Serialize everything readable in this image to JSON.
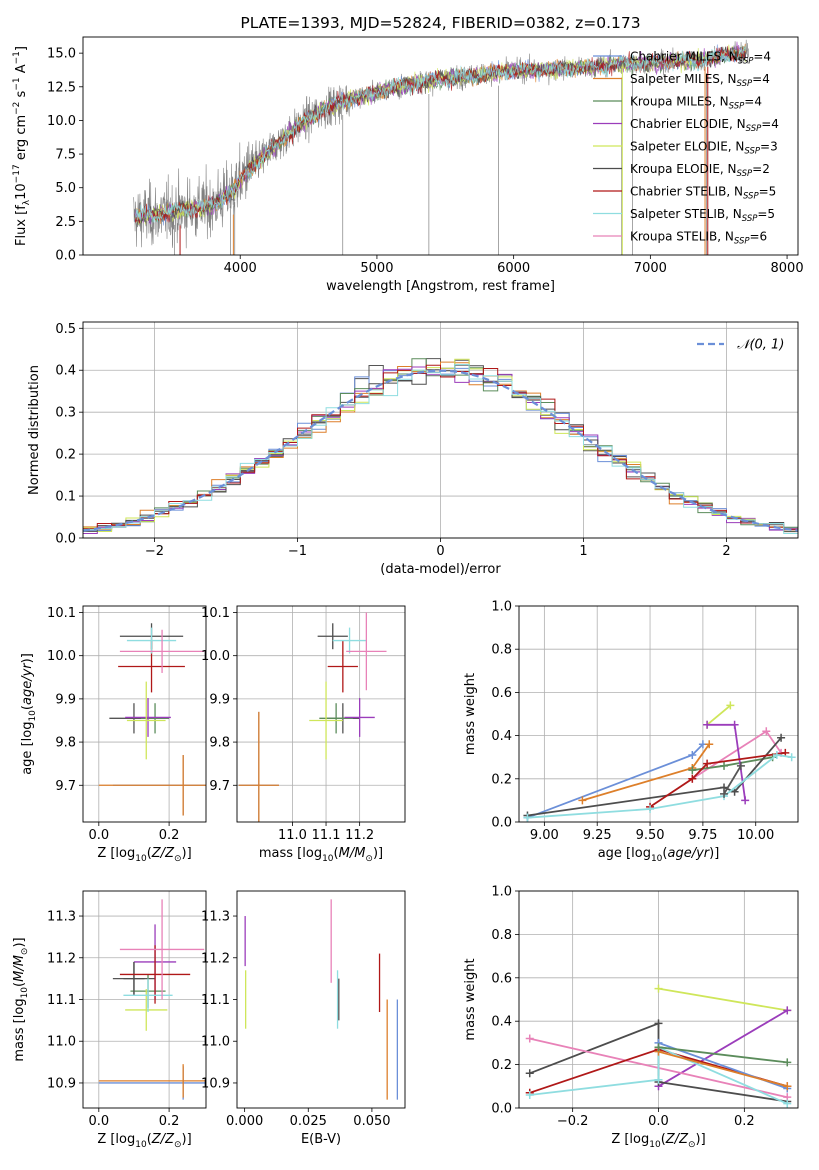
{
  "chart_data": [
    {
      "id": "spectrum",
      "type": "line",
      "title": "PLATE=1393, MJD=52824, FIBERID=0382, z=0.173",
      "xlabel": "wavelength [Angstrom, rest frame]",
      "ylabel": "Flux [f_λ 10^-17 erg cm^-2 s^-1 A^-1]",
      "xlim": [
        2850,
        8080
      ],
      "ylim": [
        0,
        16.2
      ],
      "xticks": [
        4000,
        5000,
        6000,
        7000,
        8000
      ],
      "yticks": [
        0.0,
        2.5,
        5.0,
        7.5,
        10.0,
        12.5,
        15.0
      ],
      "grid": false,
      "legend_position": "top-right",
      "legend": [
        "Chabrier MILES, N_SSP=4",
        "Salpeter MILES, N_SSP=4",
        "Kroupa MILES, N_SSP=4",
        "Chabrier ELODIE, N_SSP=4",
        "Salpeter ELODIE, N_SSP=3",
        "Kroupa ELODIE, N_SSP=2",
        "Chabrier STELIB, N_SSP=5",
        "Salpeter STELIB, N_SSP=5",
        "Kroupa STELIB, N_SSP=6"
      ],
      "continuum": [
        [
          3230,
          2.8
        ],
        [
          3400,
          3.0
        ],
        [
          3600,
          3.4
        ],
        [
          3800,
          3.7
        ],
        [
          3950,
          4.8
        ],
        [
          4050,
          6.2
        ],
        [
          4200,
          7.6
        ],
        [
          4400,
          9.4
        ],
        [
          4600,
          10.8
        ],
        [
          4800,
          11.6
        ],
        [
          5000,
          12.1
        ],
        [
          5200,
          12.6
        ],
        [
          5400,
          13.0
        ],
        [
          5600,
          13.2
        ],
        [
          5800,
          13.5
        ],
        [
          6000,
          13.7
        ],
        [
          6300,
          13.8
        ],
        [
          6600,
          14.0
        ],
        [
          6800,
          14.2
        ],
        [
          7000,
          14.3
        ],
        [
          7400,
          14.5
        ],
        [
          7600,
          15.0
        ]
      ],
      "data_range": [
        3220,
        7720
      ]
    },
    {
      "id": "residuals",
      "type": "line",
      "xlabel": "(data-model)/error",
      "ylabel": "Normed distribution",
      "xlim": [
        -2.5,
        2.5
      ],
      "ylim": [
        0,
        0.515
      ],
      "xticks": [
        -2,
        -1,
        0,
        1,
        2
      ],
      "yticks": [
        0.0,
        0.1,
        0.2,
        0.3,
        0.4,
        0.5
      ],
      "grid": true,
      "legend_position": "top-right",
      "legend": [
        "N(0,1)"
      ],
      "bin_width": 0.1
    },
    {
      "id": "age_vs_Z",
      "type": "scatter",
      "xlabel": "Z [log10(Z/Z⊙)]",
      "ylabel": "age  [log10(age/yr)]",
      "xlim": [
        -0.045,
        0.305
      ],
      "ylim": [
        9.615,
        10.115
      ],
      "xticks": [
        0.0,
        0.2
      ],
      "yticks": [
        9.7,
        9.8,
        9.9,
        10.0,
        10.1
      ],
      "grid": true,
      "points": [
        {
          "series": 0,
          "x": 0.1,
          "y": 9.855,
          "xerr": 0.07,
          "yerr": 0.035
        },
        {
          "series": 1,
          "x": 0.24,
          "y": 9.7,
          "xerr": 0.2,
          "yerr": 0.07
        },
        {
          "series": 2,
          "x": 0.24,
          "y": 9.7,
          "xerr": 0.24,
          "yerr": 0.07
        },
        {
          "series": 3,
          "x": 0.16,
          "y": 9.855,
          "xerr": 0.04,
          "yerr": 0.035
        },
        {
          "series": 4,
          "x": 0.14,
          "y": 9.857,
          "xerr": 0.065,
          "yerr": 0.045
        },
        {
          "series": 5,
          "x": 0.135,
          "y": 9.85,
          "xerr": 0.055,
          "yerr": 0.09
        },
        {
          "series": 6,
          "x": 0.15,
          "y": 10.045,
          "xerr": 0.09,
          "yerr": 0.03
        },
        {
          "series": 7,
          "x": 0.15,
          "y": 9.975,
          "xerr": 0.095,
          "yerr": 0.06
        },
        {
          "series": 8,
          "x": 0.15,
          "y": 10.035,
          "xerr": 0.07,
          "yerr": 0.03
        },
        {
          "series": 9,
          "x": 0.18,
          "y": 10.01,
          "xerr": 0.12,
          "yerr": 0.05
        }
      ]
    },
    {
      "id": "age_vs_mass",
      "type": "scatter",
      "xlabel": "mass [log10(M/M⊙)]",
      "ylabel": "",
      "xlim": [
        10.835,
        11.335
      ],
      "ylim": [
        9.615,
        10.115
      ],
      "xticks": [
        11.0,
        11.1,
        11.2
      ],
      "yticks": [
        9.7,
        9.8,
        9.9,
        10.0,
        10.1
      ],
      "grid": true,
      "points": [
        {
          "series": 0,
          "x": 11.15,
          "y": 9.855,
          "xerr": 0.05,
          "yerr": 0.035
        },
        {
          "series": 1,
          "x": 10.9,
          "y": 9.7,
          "xerr": 0.06,
          "yerr": 0.17
        },
        {
          "series": 2,
          "x": 10.9,
          "y": 9.7,
          "xerr": 0.06,
          "yerr": 0.17
        },
        {
          "series": 3,
          "x": 11.13,
          "y": 9.855,
          "xerr": 0.05,
          "yerr": 0.035
        },
        {
          "series": 4,
          "x": 11.2,
          "y": 9.857,
          "xerr": 0.045,
          "yerr": 0.045
        },
        {
          "series": 5,
          "x": 11.1,
          "y": 9.85,
          "xerr": 0.05,
          "yerr": 0.09
        },
        {
          "series": 6,
          "x": 11.12,
          "y": 10.045,
          "xerr": 0.045,
          "yerr": 0.03
        },
        {
          "series": 7,
          "x": 11.15,
          "y": 9.975,
          "xerr": 0.045,
          "yerr": 0.06
        },
        {
          "series": 8,
          "x": 11.17,
          "y": 10.035,
          "xerr": 0.05,
          "yerr": 0.03
        },
        {
          "series": 9,
          "x": 11.22,
          "y": 10.01,
          "xerr": 0.06,
          "yerr": 0.09
        }
      ]
    },
    {
      "id": "weight_vs_age",
      "type": "line",
      "xlabel": "age  [log10(age/yr)]",
      "ylabel": "mass weight",
      "xlim": [
        8.88,
        10.2
      ],
      "ylim": [
        0,
        1.0
      ],
      "xticks": [
        9.0,
        9.25,
        9.5,
        9.75,
        10.0
      ],
      "yticks": [
        0.0,
        0.2,
        0.4,
        0.6,
        0.8,
        1.0
      ],
      "grid": true,
      "series": [
        {
          "series": 1,
          "points": [
            [
              8.92,
              0.02
            ],
            [
              9.7,
              0.31
            ],
            [
              9.75,
              0.36
            ]
          ]
        },
        {
          "series": 2,
          "points": [
            [
              9.18,
              0.1
            ],
            [
              9.7,
              0.25
            ],
            [
              9.78,
              0.36
            ]
          ]
        },
        {
          "series": 9,
          "points": [
            [
              9.7,
              0.2
            ],
            [
              10.05,
              0.42
            ],
            [
              10.12,
              0.32
            ]
          ]
        },
        {
          "series": 3,
          "points": [
            [
              9.7,
              0.24
            ],
            [
              9.85,
              0.26
            ],
            [
              10.08,
              0.3
            ]
          ]
        },
        {
          "series": 5,
          "points": [
            [
              9.77,
              0.45
            ],
            [
              9.88,
              0.54
            ]
          ]
        },
        {
          "series": 4,
          "points": [
            [
              9.77,
              0.45
            ],
            [
              9.9,
              0.45
            ],
            [
              9.95,
              0.1
            ]
          ]
        },
        {
          "series": 6,
          "points": [
            [
              8.92,
              0.03
            ],
            [
              9.85,
              0.16
            ],
            [
              9.9,
              0.14
            ],
            [
              10.12,
              0.39
            ]
          ]
        },
        {
          "series": 7,
          "points": [
            [
              9.5,
              0.07
            ],
            [
              9.7,
              0.2
            ],
            [
              9.77,
              0.27
            ],
            [
              10.14,
              0.32
            ]
          ]
        },
        {
          "series": 8,
          "points": [
            [
              8.92,
              0.02
            ],
            [
              9.5,
              0.06
            ],
            [
              9.85,
              0.12
            ],
            [
              10.1,
              0.31
            ],
            [
              10.17,
              0.3
            ]
          ]
        },
        {
          "series": 0,
          "points": [
            [
              9.85,
              0.13
            ],
            [
              9.93,
              0.26
            ]
          ]
        }
      ]
    },
    {
      "id": "mass_vs_Z",
      "type": "scatter",
      "xlabel": "Z [log10(Z/Z⊙)]",
      "ylabel": "mass [log10(M/M⊙)]",
      "xlim": [
        -0.045,
        0.305
      ],
      "ylim": [
        10.84,
        11.36
      ],
      "xticks": [
        0.0,
        0.2
      ],
      "yticks": [
        10.9,
        11.0,
        11.1,
        11.2,
        11.3
      ],
      "grid": true,
      "points": [
        {
          "series": 0,
          "x": 0.1,
          "y": 11.15,
          "xerr": 0.06,
          "yerr": 0.04
        },
        {
          "series": 1,
          "x": 0.24,
          "y": 10.9,
          "xerr": 0.24,
          "yerr": 0.04
        },
        {
          "series": 2,
          "x": 0.24,
          "y": 10.905,
          "xerr": 0.24,
          "yerr": 0.04
        },
        {
          "series": 3,
          "x": 0.14,
          "y": 11.12,
          "xerr": 0.05,
          "yerr": 0.04
        },
        {
          "series": 4,
          "x": 0.16,
          "y": 11.19,
          "xerr": 0.06,
          "yerr": 0.09
        },
        {
          "series": 5,
          "x": 0.135,
          "y": 11.075,
          "xerr": 0.06,
          "yerr": 0.05
        },
        {
          "series": 6,
          "x": 0.1,
          "y": 11.15,
          "xerr": 0.03,
          "yerr": 0.04
        },
        {
          "series": 7,
          "x": 0.16,
          "y": 11.16,
          "xerr": 0.1,
          "yerr": 0.07
        },
        {
          "series": 8,
          "x": 0.14,
          "y": 11.11,
          "xerr": 0.07,
          "yerr": 0.04
        },
        {
          "series": 9,
          "x": 0.18,
          "y": 11.22,
          "xerr": 0.12,
          "yerr": 0.12
        }
      ]
    },
    {
      "id": "mass_vs_ebv",
      "type": "scatter",
      "xlabel": "E(B-V)",
      "ylabel": "",
      "xlim": [
        -0.003,
        0.063
      ],
      "ylim": [
        10.84,
        11.36
      ],
      "xticks": [
        0.0,
        0.025,
        0.05
      ],
      "yticks": [
        10.9,
        11.0,
        11.1,
        11.2,
        11.3
      ],
      "grid": false,
      "points": [
        {
          "series": 4,
          "x": 0.0002,
          "y": 11.24,
          "xerr": 0,
          "yerr": 0.06
        },
        {
          "series": 5,
          "x": 0.0004,
          "y": 11.1,
          "xerr": 0,
          "yerr": 0.07
        },
        {
          "series": 9,
          "x": 0.034,
          "y": 11.24,
          "xerr": 0,
          "yerr": 0.1
        },
        {
          "series": 8,
          "x": 0.0365,
          "y": 11.1,
          "xerr": 0,
          "yerr": 0.07
        },
        {
          "series": 0,
          "x": 0.037,
          "y": 11.1,
          "xerr": 0,
          "yerr": 0.05
        },
        {
          "series": 7,
          "x": 0.053,
          "y": 11.14,
          "xerr": 0,
          "yerr": 0.07
        },
        {
          "series": 2,
          "x": 0.056,
          "y": 10.98,
          "xerr": 0,
          "yerr": 0.12
        },
        {
          "series": 1,
          "x": 0.06,
          "y": 10.98,
          "xerr": 0,
          "yerr": 0.12
        }
      ]
    },
    {
      "id": "weight_vs_Z",
      "type": "line",
      "xlabel": "Z [log10(Z/Z⊙)]",
      "ylabel": "mass weight",
      "xlim": [
        -0.325,
        0.325
      ],
      "ylim": [
        0,
        1.0
      ],
      "xticks": [
        -0.2,
        0.0,
        0.2
      ],
      "yticks": [
        0.0,
        0.2,
        0.4,
        0.6,
        0.8,
        1.0
      ],
      "grid": true,
      "series": [
        {
          "series": 5,
          "points": [
            [
              0.0,
              0.55
            ],
            [
              0.3,
              0.45
            ]
          ]
        },
        {
          "series": 4,
          "points": [
            [
              0.0,
              0.1
            ],
            [
              0.3,
              0.45
            ]
          ]
        },
        {
          "series": 6,
          "points": [
            [
              -0.3,
              0.16
            ],
            [
              0.0,
              0.39
            ],
            [
              0.0,
              0.12
            ],
            [
              0.3,
              0.03
            ]
          ]
        },
        {
          "series": 9,
          "points": [
            [
              -0.3,
              0.32
            ],
            [
              0.3,
              0.05
            ]
          ]
        },
        {
          "series": 7,
          "points": [
            [
              -0.3,
              0.07
            ],
            [
              0.0,
              0.27
            ],
            [
              0.3,
              0.1
            ]
          ]
        },
        {
          "series": 8,
          "points": [
            [
              -0.3,
              0.06
            ],
            [
              0.0,
              0.13
            ],
            [
              0.0,
              0.28
            ],
            [
              0.3,
              0.02
            ]
          ]
        },
        {
          "series": 1,
          "points": [
            [
              0.0,
              0.3
            ],
            [
              0.3,
              0.09
            ]
          ]
        },
        {
          "series": 2,
          "points": [
            [
              0.0,
              0.26
            ],
            [
              0.3,
              0.1
            ]
          ]
        },
        {
          "series": 3,
          "points": [
            [
              0.0,
              0.28
            ],
            [
              0.3,
              0.21
            ]
          ]
        }
      ]
    }
  ],
  "palette": [
    "#555555",
    "#6b8fd8",
    "#dd7f2a",
    "#5b8c5b",
    "#9b3dbb",
    "#cfe65a",
    "#4d4d4d",
    "#b01818",
    "#8fdde0",
    "#e882b8"
  ],
  "spectrum_color": "#808080"
}
